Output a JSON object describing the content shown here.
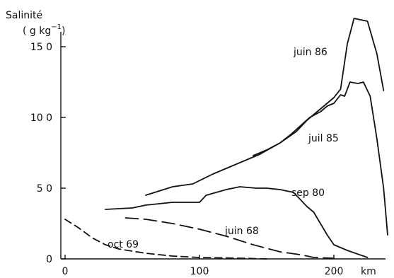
{
  "chart_data": {
    "type": "line",
    "ylabel": "Salinité",
    "yunit_main": "( g kg",
    "yunit_exp": "−1",
    "yunit_close": ")",
    "xunit": "km",
    "xlim": [
      0,
      240
    ],
    "ylim": [
      0,
      175
    ],
    "xticks": [
      0,
      100,
      200
    ],
    "xtick_labels": [
      "0",
      "100",
      "200"
    ],
    "yticks": [
      0,
      50,
      100,
      150
    ],
    "ytick_labels": [
      "0",
      "5 0",
      "10 0",
      "15 0"
    ],
    "grid": false,
    "legend": "none",
    "series": [
      {
        "name": "juin 86",
        "style": "solid",
        "points": [
          [
            60,
            45
          ],
          [
            80,
            51
          ],
          [
            95,
            53
          ],
          [
            110,
            60
          ],
          [
            125,
            66
          ],
          [
            135,
            70
          ],
          [
            145,
            74
          ],
          [
            160,
            82
          ],
          [
            172,
            90
          ],
          [
            180,
            98
          ],
          [
            190,
            106
          ],
          [
            200,
            114
          ],
          [
            205,
            120
          ],
          [
            210,
            152
          ],
          [
            215,
            170
          ],
          [
            225,
            168
          ],
          [
            232,
            145
          ],
          [
            237,
            119
          ]
        ]
      },
      {
        "name": "juil 85",
        "style": "solid",
        "points": [
          [
            140,
            73
          ],
          [
            150,
            77
          ],
          [
            160,
            82
          ],
          [
            168,
            88
          ],
          [
            175,
            94
          ],
          [
            182,
            100
          ],
          [
            190,
            104
          ],
          [
            195,
            108
          ],
          [
            200,
            110
          ],
          [
            205,
            116
          ],
          [
            208,
            115
          ],
          [
            212,
            125
          ],
          [
            218,
            124
          ],
          [
            222,
            125
          ],
          [
            227,
            115
          ],
          [
            232,
            85
          ],
          [
            237,
            50
          ],
          [
            240,
            17
          ]
        ]
      },
      {
        "name": "sep 80",
        "style": "solid",
        "points": [
          [
            30,
            35
          ],
          [
            50,
            36
          ],
          [
            60,
            38
          ],
          [
            80,
            40
          ],
          [
            100,
            40
          ],
          [
            105,
            45
          ],
          [
            120,
            49
          ],
          [
            130,
            51
          ],
          [
            142,
            50
          ],
          [
            150,
            50
          ],
          [
            160,
            49
          ],
          [
            170,
            47
          ],
          [
            180,
            37
          ],
          [
            185,
            33
          ],
          [
            190,
            25
          ],
          [
            195,
            17
          ],
          [
            200,
            10
          ],
          [
            210,
            6
          ],
          [
            225,
            1
          ]
        ]
      },
      {
        "name": "juin 68",
        "style": "dashed",
        "points": [
          [
            45,
            29
          ],
          [
            60,
            28
          ],
          [
            80,
            25
          ],
          [
            100,
            21
          ],
          [
            120,
            16
          ],
          [
            140,
            10
          ],
          [
            160,
            5
          ],
          [
            175,
            3
          ],
          [
            185,
            1
          ],
          [
            200,
            0.5
          ]
        ]
      },
      {
        "name": "oct 69",
        "style": "dashed",
        "points": [
          [
            0,
            28
          ],
          [
            10,
            22
          ],
          [
            20,
            15
          ],
          [
            30,
            10
          ],
          [
            40,
            7
          ],
          [
            60,
            4
          ],
          [
            80,
            2
          ],
          [
            100,
            1
          ],
          [
            130,
            0.5
          ],
          [
            150,
            0
          ]
        ]
      }
    ],
    "annotations": [
      {
        "text": "juin 86",
        "series": 0
      },
      {
        "text": "juil 85",
        "series": 1
      },
      {
        "text": "sep 80",
        "series": 2
      },
      {
        "text": "juin 68",
        "series": 3
      },
      {
        "text": "oct 69",
        "series": 4
      }
    ]
  }
}
